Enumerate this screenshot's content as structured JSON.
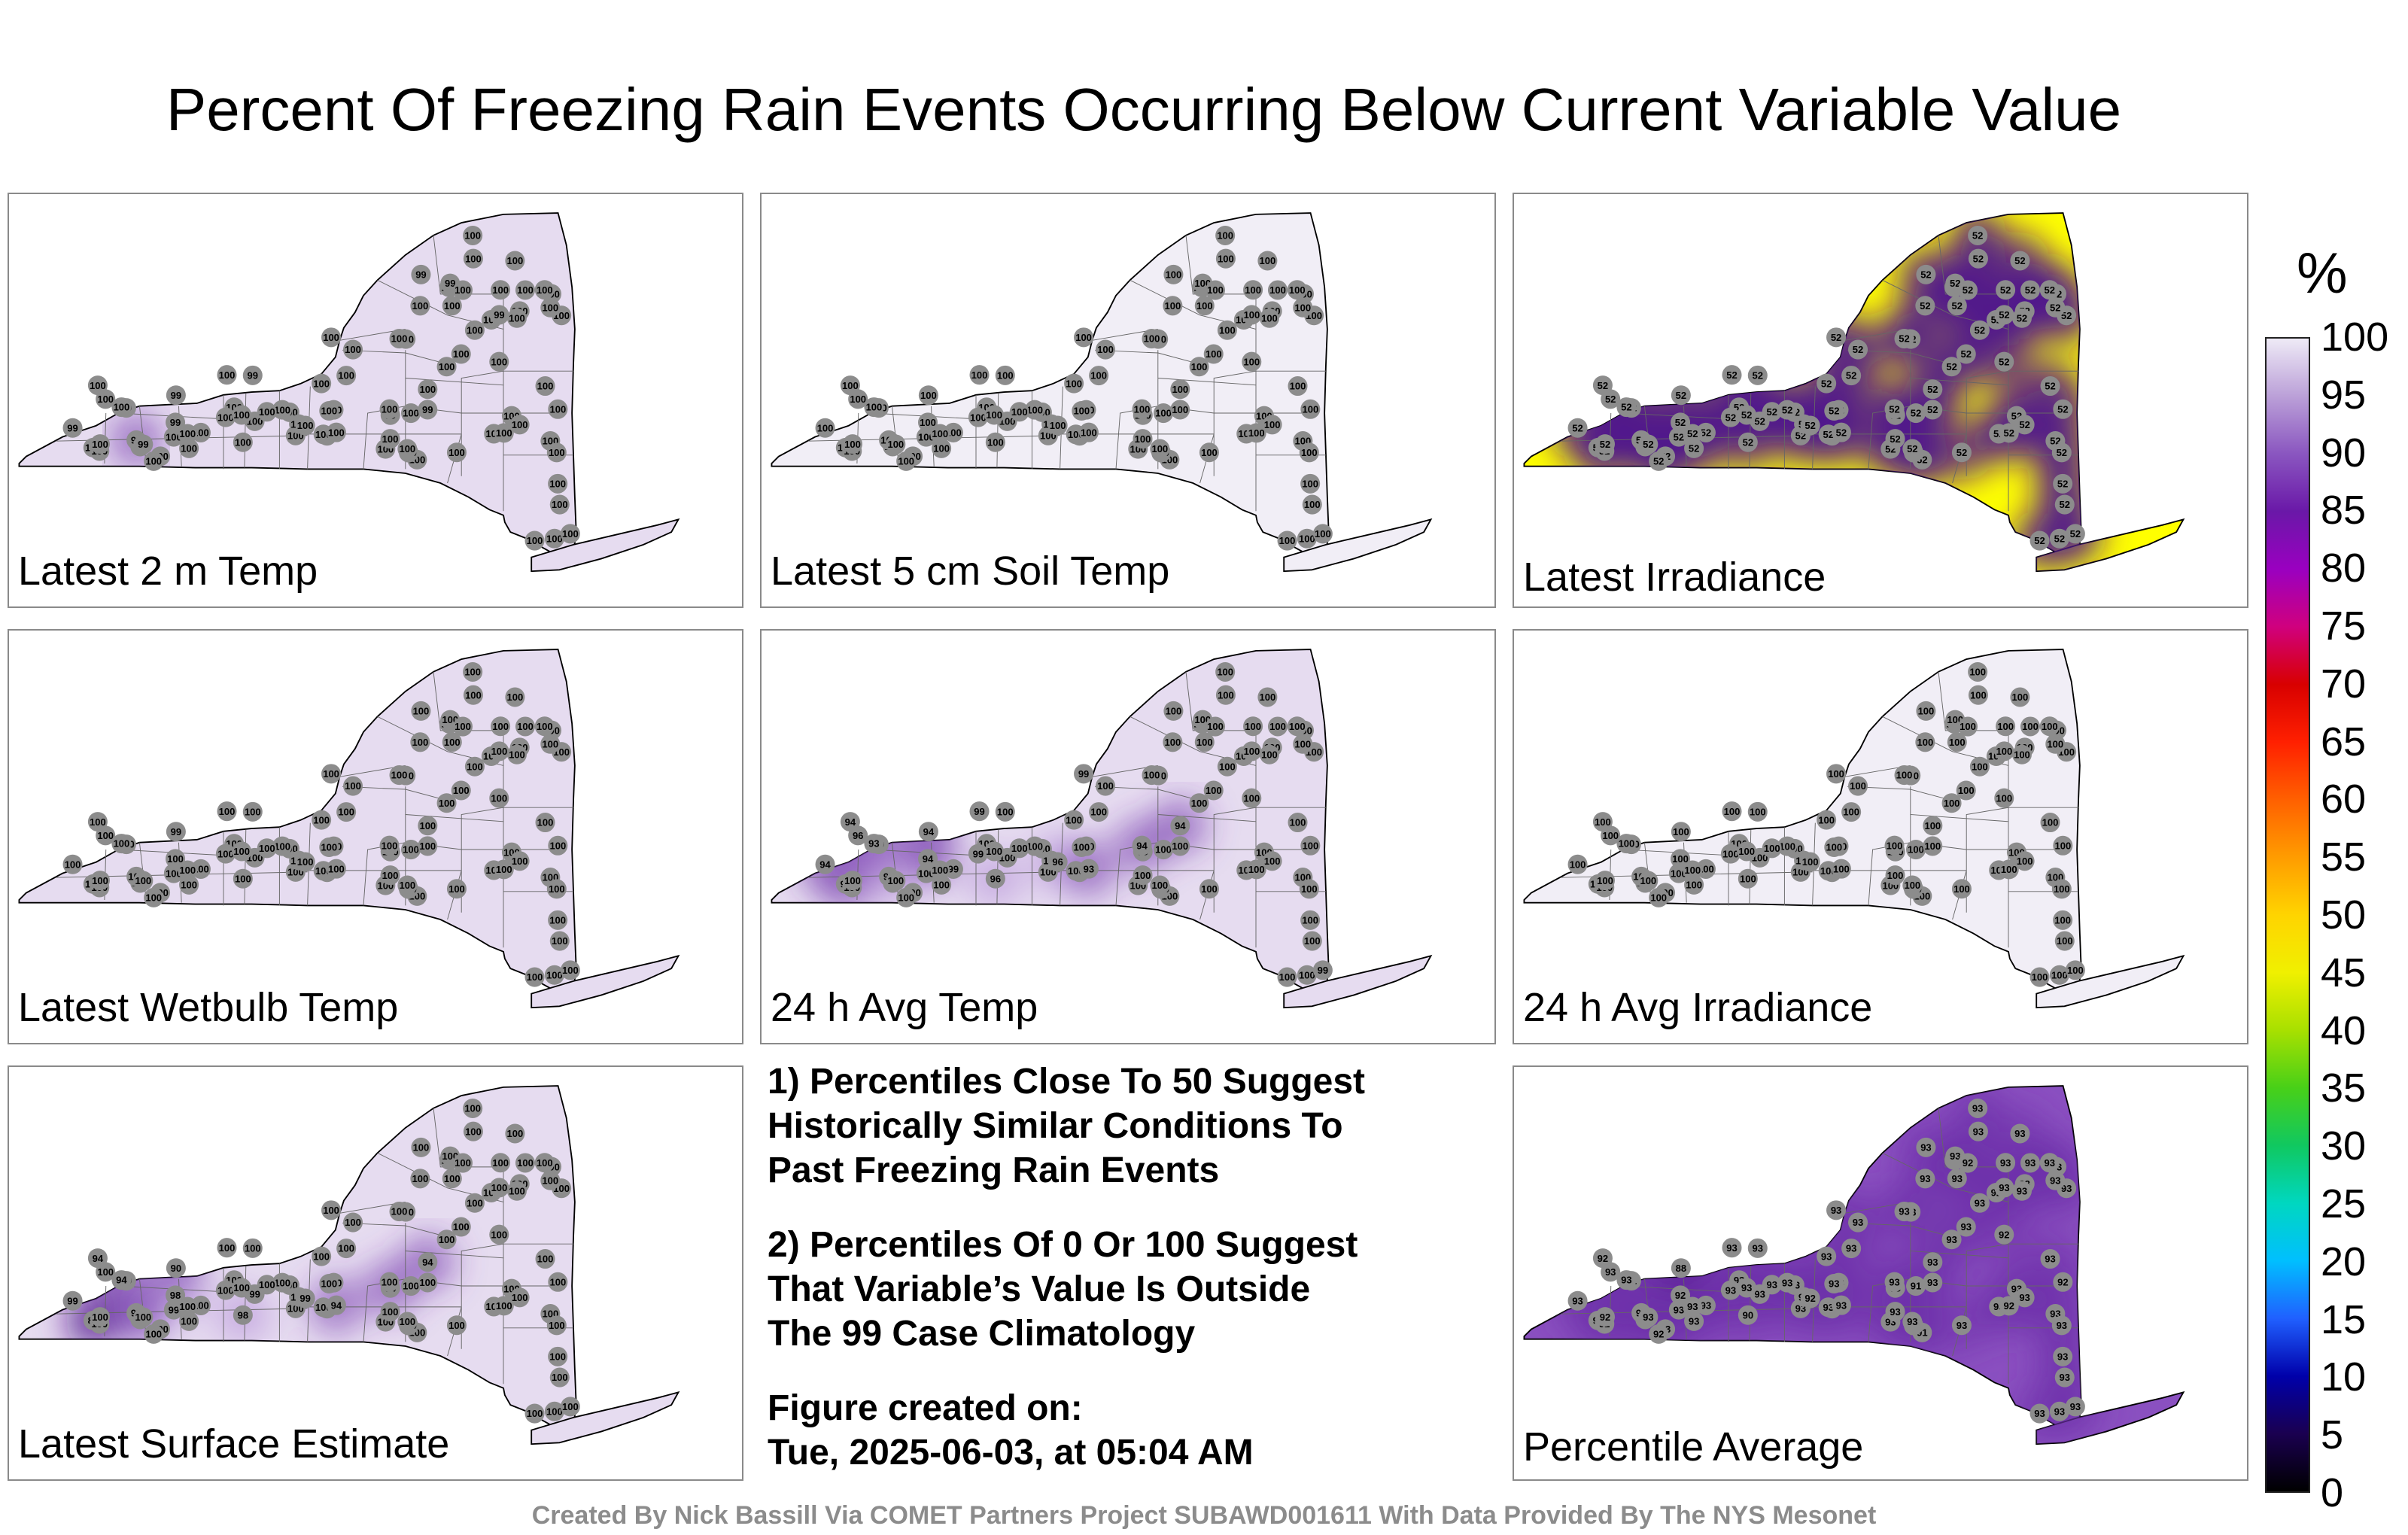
{
  "title": "Percent Of Freezing Rain Events Occurring Below Current Variable Value",
  "colorbar": {
    "unit": "%",
    "ticks": [
      "100",
      "95",
      "90",
      "85",
      "80",
      "75",
      "70",
      "65",
      "60",
      "55",
      "50",
      "45",
      "40",
      "35",
      "30",
      "25",
      "20",
      "15",
      "10",
      "5",
      "0"
    ],
    "stops": [
      "#000000",
      "#1a0050",
      "#0000aa",
      "#2060ff",
      "#00bfff",
      "#00d7c0",
      "#10c860",
      "#48d018",
      "#a8e000",
      "#f0f000",
      "#ffd400",
      "#ff9c00",
      "#ff6000",
      "#ff2000",
      "#d80000",
      "#d0007e",
      "#9a00c0",
      "#6a18a8",
      "#8a56c0",
      "#bba0d8",
      "#eeeaf6"
    ]
  },
  "chart_data": [
    {
      "type": "heatmap",
      "title": "Latest 2 m Temp",
      "fill": "#e6dcf0",
      "station_values": [
        "100",
        "99",
        "100",
        "100",
        "99",
        "100",
        "99",
        "91",
        "99",
        "100",
        "100",
        "99",
        "100",
        "100",
        "100",
        "100",
        "100",
        "99",
        "100",
        "100",
        "100",
        "100",
        "100",
        "100",
        "100",
        "100",
        "100",
        "100",
        "100",
        "100",
        "99",
        "100",
        "100",
        "100",
        "100",
        "100",
        "100",
        "100",
        "99",
        "100",
        "100",
        "100",
        "100",
        "100",
        "100",
        "100",
        "100",
        "100",
        "100",
        "100",
        "100",
        "100",
        "100",
        "99",
        "100",
        "100",
        "100",
        "100",
        "100",
        "99",
        "100",
        "100",
        "100",
        "100",
        "100",
        "100",
        "99",
        "99",
        "100",
        "100",
        "100",
        "100",
        "100",
        "100",
        "100",
        "100",
        "100",
        "100",
        "100",
        "100",
        "100",
        "100",
        "100",
        "100",
        "100",
        "100",
        "100",
        "100",
        "100",
        "100"
      ]
    },
    {
      "type": "heatmap",
      "title": "Latest 5 cm Soil Temp",
      "fill": "#f1eef6",
      "station_values": [
        "100",
        "100",
        "100",
        "100",
        "100",
        "100",
        "100",
        "100",
        "100",
        "100",
        "100",
        "100",
        "100",
        "100",
        "100",
        "100",
        "100",
        "100",
        "100",
        "100",
        "100",
        "100",
        "100",
        "100",
        "100",
        "100",
        "100",
        "100",
        "100",
        "100",
        "100",
        "100",
        "100",
        "100",
        "100",
        "100",
        "100",
        "100",
        "100",
        "100",
        "100",
        "100",
        "100",
        "100",
        "100",
        "100",
        "100",
        "100",
        "100",
        "100",
        "100",
        "100",
        "100",
        "100",
        "100",
        "100",
        "100",
        "100",
        "100",
        "100",
        "100",
        "100",
        "100",
        "100",
        "100",
        "100",
        "100",
        "100",
        "100",
        "100",
        "100",
        "100",
        "100",
        "100",
        "100",
        "100",
        "100",
        "100",
        "100",
        "100",
        "100",
        "100",
        "100",
        "100",
        "100",
        "100",
        "100",
        "100",
        "100",
        "100"
      ]
    },
    {
      "type": "heatmap",
      "title": "Latest Irradiance",
      "fill": "#ffff00",
      "station_values": [
        "52",
        "52",
        "52",
        "52",
        "52",
        "52",
        "52",
        "52",
        "52",
        "52",
        "52",
        "52",
        "52",
        "52",
        "52",
        "52",
        "52",
        "52",
        "52",
        "52",
        "52",
        "52",
        "52",
        "52",
        "52",
        "52",
        "52",
        "52",
        "52",
        "52",
        "52",
        "52",
        "52",
        "52",
        "52",
        "52",
        "52",
        "52",
        "52",
        "52",
        "52",
        "52",
        "52",
        "52",
        "52",
        "52",
        "52",
        "52",
        "52",
        "52",
        "52",
        "52",
        "52",
        "52",
        "52",
        "52",
        "52",
        "52",
        "52",
        "52",
        "52",
        "52",
        "52",
        "52",
        "52",
        "52",
        "52",
        "52",
        "52",
        "52",
        "52",
        "52",
        "52",
        "52",
        "52",
        "52",
        "52",
        "52",
        "52",
        "52",
        "52",
        "52",
        "52",
        "52",
        "52",
        "52",
        "52",
        "52",
        "52",
        "52"
      ]
    },
    {
      "type": "heatmap",
      "title": "Latest Wetbulb Temp",
      "fill": "#e6dcf0",
      "station_values": [
        "100",
        "100",
        "100",
        "100",
        "100",
        "100",
        "100",
        "100",
        "99",
        "100",
        "100",
        "100",
        "100",
        "100",
        "100",
        "100",
        "100",
        "100",
        "100",
        "100",
        "100",
        "100",
        "100",
        "100",
        "100",
        "100",
        "100",
        "100",
        "100",
        "100",
        "100",
        "100",
        "100",
        "100",
        "100",
        "100",
        "100",
        "100",
        "100",
        "100",
        "100",
        "100",
        "100",
        "100",
        "100",
        "100",
        "100",
        "100",
        "100",
        "100",
        "100",
        "100",
        "100",
        "100",
        "100",
        "100",
        "100",
        "100",
        "100",
        "100",
        "100",
        "100",
        "100",
        "100",
        "100",
        "100",
        "100",
        "100",
        "100",
        "100",
        "100",
        "100",
        "100",
        "100",
        "100",
        "100",
        "100",
        "100",
        "100",
        "100",
        "100",
        "100",
        "100",
        "100",
        "100",
        "100",
        "100",
        "100",
        "100",
        "100"
      ]
    },
    {
      "type": "heatmap",
      "title": "24 h Avg Temp",
      "fill": "#e6dcf0",
      "station_values": [
        "100",
        "99",
        "100",
        "100",
        "94",
        "93",
        "94",
        "96",
        "94",
        "94",
        "96",
        "99",
        "93",
        "99",
        "100",
        "100",
        "100",
        "100",
        "100",
        "96",
        "100",
        "100",
        "100",
        "100",
        "100",
        "100",
        "100",
        "100",
        "100",
        "99",
        "100",
        "100",
        "99",
        "96",
        "100",
        "100",
        "94",
        "93",
        "99",
        "94",
        "100",
        "100",
        "100",
        "99",
        "100",
        "100",
        "100",
        "100",
        "100",
        "100",
        "100",
        "100",
        "100",
        "100",
        "100",
        "100",
        "100",
        "100",
        "100",
        "100",
        "100",
        "100",
        "100",
        "100",
        "100",
        "100",
        "100",
        "100",
        "100",
        "100",
        "100",
        "100",
        "100",
        "100",
        "100",
        "100",
        "100",
        "100",
        "100",
        "100",
        "100",
        "100",
        "100",
        "100",
        "100",
        "100",
        "100",
        "100",
        "100",
        "99"
      ]
    },
    {
      "type": "heatmap",
      "title": "24 h Avg Irradiance",
      "fill": "#f1eef6",
      "station_values": [
        "100",
        "100",
        "100",
        "100",
        "100",
        "100",
        "100",
        "100",
        "100",
        "100",
        "100",
        "100",
        "100",
        "100",
        "100",
        "100",
        "100",
        "100",
        "100",
        "100",
        "100",
        "100",
        "100",
        "100",
        "100",
        "100",
        "100",
        "100",
        "100",
        "100",
        "100",
        "100",
        "100",
        "100",
        "100",
        "100",
        "100",
        "100",
        "100",
        "100",
        "100",
        "100",
        "100",
        "100",
        "100",
        "100",
        "100",
        "100",
        "100",
        "100",
        "100",
        "100",
        "100",
        "100",
        "100",
        "100",
        "100",
        "100",
        "100",
        "100",
        "100",
        "100",
        "100",
        "100",
        "100",
        "100",
        "100",
        "100",
        "100",
        "100",
        "100",
        "100",
        "100",
        "100",
        "100",
        "100",
        "100",
        "100",
        "100",
        "100",
        "100",
        "100",
        "100",
        "100",
        "100",
        "100",
        "100",
        "100",
        "100",
        "100"
      ]
    },
    {
      "type": "heatmap",
      "title": "Latest Surface Estimate",
      "fill": "#e6dcf0",
      "station_values": [
        "100",
        "98",
        "100",
        "99",
        "98",
        "83",
        "99",
        "90",
        "90",
        "94",
        "98",
        "99",
        "94",
        "100",
        "100",
        "100",
        "99",
        "100",
        "100",
        "100",
        "100",
        "100",
        "100",
        "100",
        "100",
        "100",
        "100",
        "100",
        "100",
        "100",
        "100",
        "100",
        "100",
        "99",
        "100",
        "100",
        "94",
        "94",
        "94",
        "100",
        "100",
        "100",
        "100",
        "100",
        "100",
        "100",
        "100",
        "100",
        "100",
        "100",
        "100",
        "100",
        "100",
        "100",
        "100",
        "100",
        "100",
        "100",
        "100",
        "100",
        "100",
        "100",
        "100",
        "100",
        "100",
        "100",
        "100",
        "100",
        "100",
        "100",
        "100",
        "100",
        "100",
        "100",
        "100",
        "100",
        "100",
        "100",
        "100",
        "100",
        "100",
        "100",
        "100",
        "100",
        "100",
        "100",
        "100",
        "100",
        "100",
        "100"
      ]
    },
    {
      "type": "heatmap",
      "title": "Percentile Average",
      "fill": "#8a50c0",
      "station_values": [
        "93",
        "93",
        "92",
        "93",
        "92",
        "92",
        "93",
        "93",
        "88",
        "92",
        "90",
        "91",
        "93",
        "93",
        "93",
        "92",
        "93",
        "93",
        "92",
        "93",
        "93",
        "93",
        "93",
        "93",
        "93",
        "93",
        "93",
        "93",
        "93",
        "93",
        "93",
        "93",
        "93",
        "92",
        "93",
        "93",
        "93",
        "93",
        "93",
        "93",
        "93",
        "91",
        "93",
        "93",
        "93",
        "91",
        "93",
        "93",
        "93",
        "93",
        "93",
        "93",
        "93",
        "93",
        "93",
        "92",
        "92",
        "93",
        "93",
        "93",
        "93",
        "93",
        "93",
        "93",
        "93",
        "93",
        "93",
        "93",
        "93",
        "93",
        "92",
        "93",
        "93",
        "93",
        "93",
        "93",
        "93",
        "93",
        "93",
        "93",
        "93",
        "93",
        "93",
        "93",
        "92",
        "92",
        "93",
        "93",
        "93",
        "93"
      ]
    }
  ],
  "notes": {
    "line1a": "1) Percentiles Close To 50 Suggest",
    "line1b": "Historically Similar Conditions To",
    "line1c": "Past Freezing Rain Events",
    "line2a": "2) Percentiles Of 0 Or 100 Suggest",
    "line2b": "That Variable’s Value Is Outside",
    "line2c": "The 99 Case Climatology",
    "created_label": "Figure created on:",
    "created_value": "Tue, 2025-06-03, at 05:04 AM"
  },
  "footer": "Created By Nick Bassill Via COMET Partners Project SUBAWD001611 With Data Provided By The NYS Mesonet"
}
